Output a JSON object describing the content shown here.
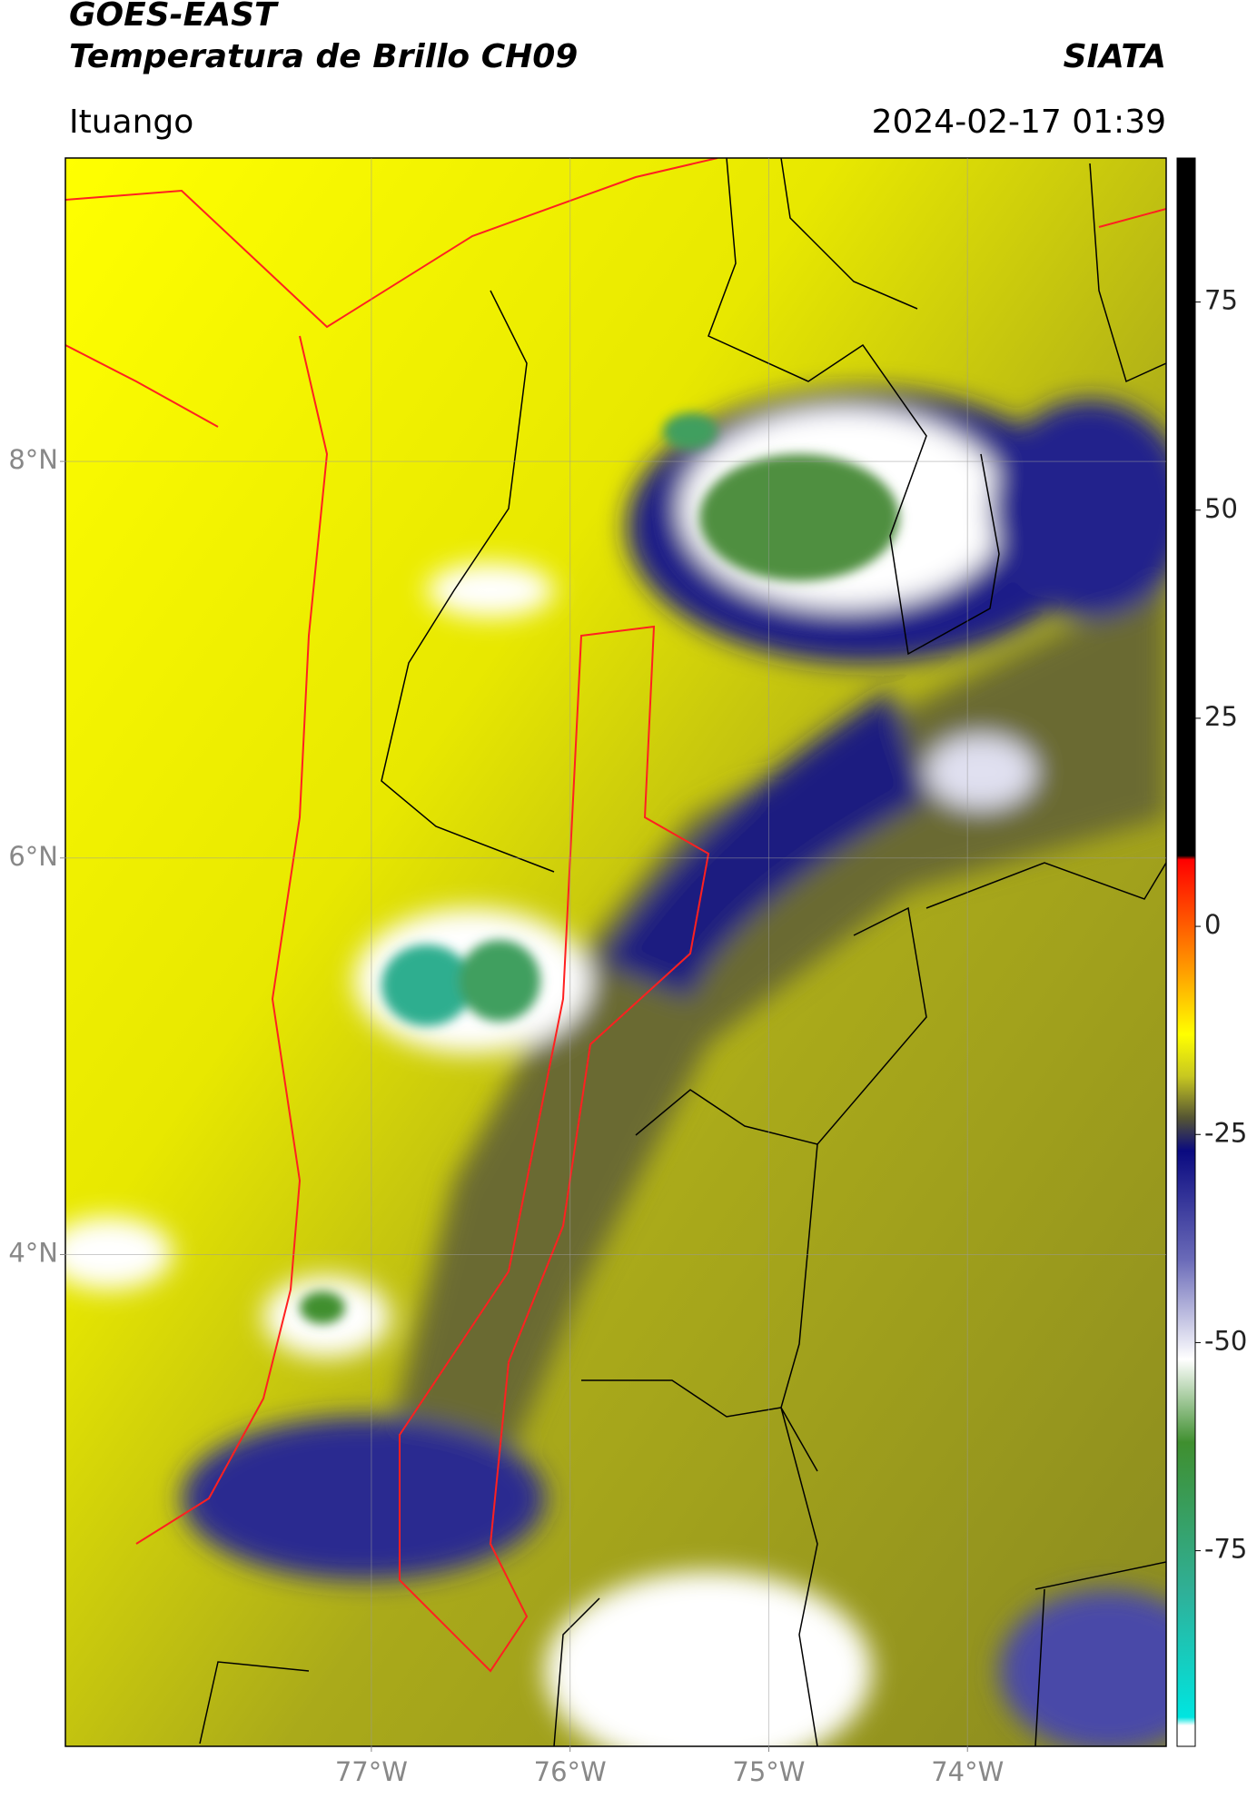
{
  "header": {
    "title": "GOES-EAST",
    "subtitle": "Temperatura de Brillo CH09",
    "source": "SIATA",
    "location": "Ituango",
    "datetime": "2024-02-17 01:39"
  },
  "map": {
    "xlim": [
      -78.54,
      -73.0
    ],
    "ylim": [
      1.52,
      9.53
    ],
    "xticks": [
      {
        "value": -77,
        "label": "77°W"
      },
      {
        "value": -76,
        "label": "76°W"
      },
      {
        "value": -75,
        "label": "75°W"
      },
      {
        "value": -74,
        "label": "74°W"
      }
    ],
    "yticks": [
      {
        "value": 8,
        "label": "8°N"
      },
      {
        "value": 6,
        "label": "6°N"
      },
      {
        "value": 4,
        "label": "4°N"
      }
    ],
    "grid": true
  },
  "colorbar": {
    "clim": [
      -98.5,
      92.3
    ],
    "ticks": [
      75,
      50,
      25,
      0,
      -25,
      -50,
      -75
    ],
    "colormap": [
      {
        "value": 92.3,
        "color": "#000000"
      },
      {
        "value": 8.5,
        "color": "#000000"
      },
      {
        "value": 8,
        "color": "#ff0000"
      },
      {
        "value": -5,
        "color": "#ff9900"
      },
      {
        "value": -13,
        "color": "#ffff00"
      },
      {
        "value": -18,
        "color": "#c8c820"
      },
      {
        "value": -23,
        "color": "#555533"
      },
      {
        "value": -27,
        "color": "#0a0a80"
      },
      {
        "value": -40,
        "color": "#6a6ab8"
      },
      {
        "value": -52,
        "color": "#ffffff"
      },
      {
        "value": -62,
        "color": "#3f8f2f"
      },
      {
        "value": -80,
        "color": "#2fb098"
      },
      {
        "value": -95,
        "color": "#00e5e0"
      },
      {
        "value": -96,
        "color": "#ffffff"
      },
      {
        "value": -98.5,
        "color": "#ffffff"
      }
    ]
  }
}
